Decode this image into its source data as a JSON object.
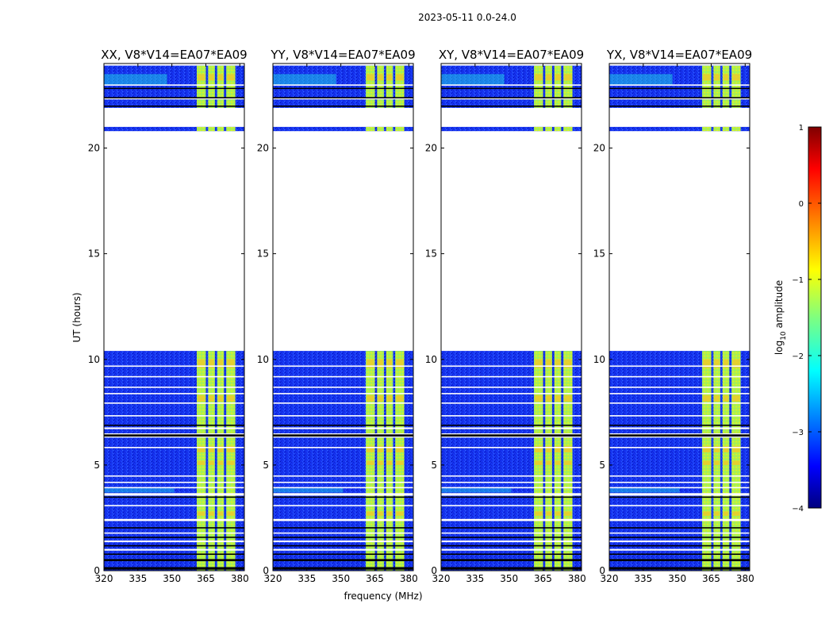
{
  "chart_data": {
    "type": "heatmap",
    "suptitle": "2023-05-11 0.0-24.0",
    "xlabel": "frequency (MHz)",
    "ylabel": "UT (hours)",
    "xlim": [
      320,
      382
    ],
    "ylim": [
      0,
      24
    ],
    "xticks": [
      320,
      335,
      350,
      365,
      380
    ],
    "yticks": [
      0,
      5,
      10,
      15,
      20
    ],
    "panels": [
      {
        "title": "XX, V8*V14=EA07*EA09",
        "pol": "XX"
      },
      {
        "title": "YY, V8*V14=EA07*EA09",
        "pol": "YY"
      },
      {
        "title": "XY, V8*V14=EA07*EA09",
        "pol": "XY"
      },
      {
        "title": "YX, V8*V14=EA07*EA09",
        "pol": "YX"
      }
    ],
    "colorbar": {
      "label": "log",
      "label_sub": "10",
      "label_suffix": " amplitude",
      "range": [
        -4,
        1
      ],
      "ticks": [
        1,
        0,
        -1,
        -2,
        -3,
        -4
      ],
      "tick_labels": [
        "1",
        "0",
        "−1",
        "−2",
        "−3",
        "−4"
      ],
      "colormap": "jet"
    },
    "data_segments_ut_hours": [
      [
        0.0,
        3.5
      ],
      [
        3.5,
        6.3
      ],
      [
        6.5,
        10.4
      ],
      [
        20.8,
        21.0
      ],
      [
        21.9,
        22.3
      ],
      [
        22.4,
        23.9
      ]
    ],
    "rfi_band_mhz": [
      361,
      378
    ],
    "rfi_subbands_mhz": [
      [
        361,
        365
      ],
      [
        366,
        369
      ],
      [
        370,
        373
      ],
      [
        374,
        378
      ]
    ]
  },
  "colors": {
    "background": "#ffffff",
    "axis": "#000000",
    "noise": "#1030ee",
    "signal": "#c8f03c"
  }
}
